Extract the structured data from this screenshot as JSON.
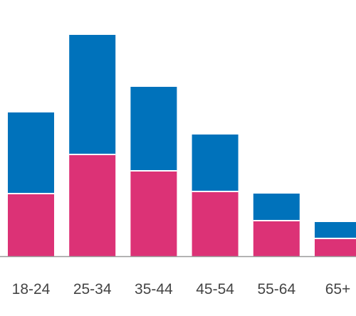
{
  "chart_data": {
    "type": "bar",
    "stacked": true,
    "categories": [
      "18-24",
      "25-34",
      "35-44",
      "45-54",
      "55-64",
      "65+"
    ],
    "series": [
      {
        "values": [
          88,
          143,
          120,
          91,
          50,
          25
        ],
        "color": "#dc3276"
      },
      {
        "values": [
          114,
          168,
          118,
          80,
          38,
          23
        ],
        "color": "#0072bb"
      }
    ],
    "ylim": [
      0,
      315
    ],
    "grid": false,
    "legend": "none",
    "baseline_color": "#999999"
  }
}
